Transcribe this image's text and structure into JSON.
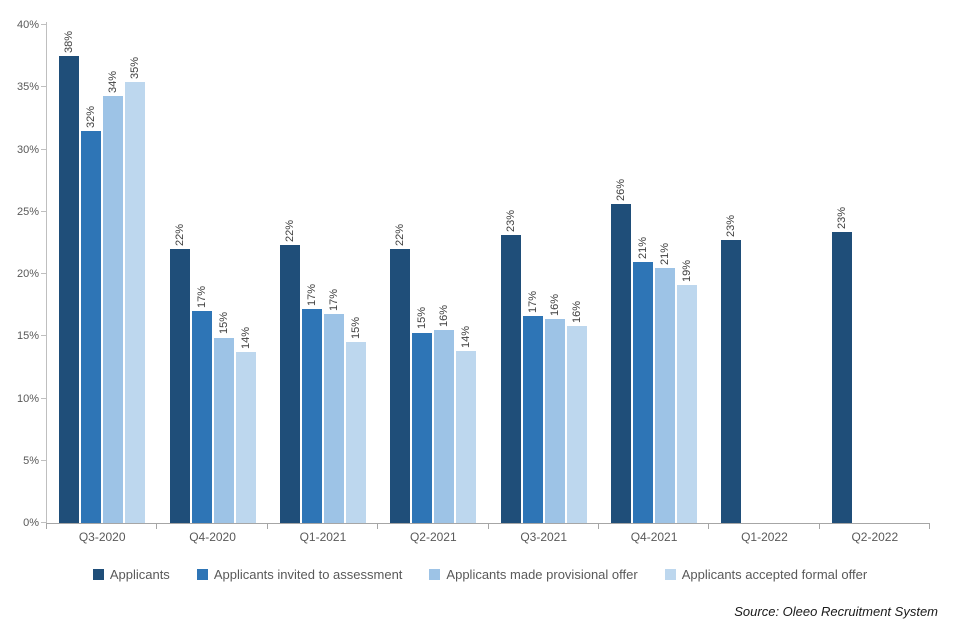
{
  "chart_data": {
    "type": "bar",
    "title": "",
    "xlabel": "",
    "ylabel": "",
    "categories": [
      "Q3-2020",
      "Q4-2020",
      "Q1-2021",
      "Q2-2021",
      "Q3-2021",
      "Q4-2021",
      "Q1-2022",
      "Q2-2022"
    ],
    "series": [
      {
        "name": "Applicants",
        "color": "#1F4E79",
        "values": [
          37.5,
          22.0,
          22.3,
          22.0,
          23.1,
          25.6,
          22.7,
          23.4
        ],
        "labels": [
          "38%",
          "22%",
          "22%",
          "22%",
          "23%",
          "26%",
          "23%",
          "23%"
        ]
      },
      {
        "name": "Applicants invited to assessment",
        "color": "#2E75B6",
        "values": [
          31.5,
          17.0,
          17.2,
          15.3,
          16.6,
          21.0,
          null,
          null
        ],
        "labels": [
          "32%",
          "17%",
          "17%",
          "15%",
          "17%",
          "21%",
          null,
          null
        ]
      },
      {
        "name": "Applicants made provisional offer",
        "color": "#9DC3E6",
        "values": [
          34.3,
          14.9,
          16.8,
          15.5,
          16.4,
          20.5,
          null,
          null
        ],
        "labels": [
          "34%",
          "15%",
          "17%",
          "16%",
          "16%",
          "21%",
          null,
          null
        ]
      },
      {
        "name": "Applicants accepted formal offer",
        "color": "#BDD7EE",
        "values": [
          35.4,
          13.7,
          14.5,
          13.8,
          15.8,
          19.1,
          null,
          null
        ],
        "labels": [
          "35%",
          "14%",
          "15%",
          "14%",
          "16%",
          "19%",
          null,
          null
        ]
      }
    ],
    "ylim": [
      0,
      40
    ],
    "y_ticks": [
      "0%",
      "5%",
      "10%",
      "15%",
      "20%",
      "25%",
      "30%",
      "35%",
      "40%"
    ],
    "grid": false,
    "legend_position": "bottom"
  },
  "source": {
    "label": "Source: Oleeo Recruitment  System"
  }
}
